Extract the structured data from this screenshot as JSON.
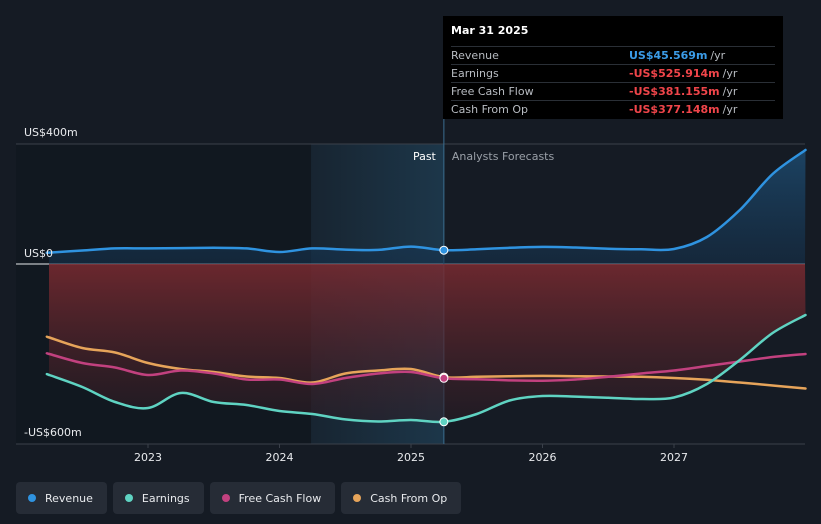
{
  "tooltip": {
    "date": "Mar 31 2025",
    "rows": [
      {
        "label": "Revenue",
        "value": "US$45.569m",
        "unit": "/yr",
        "color": "#3b9ce8"
      },
      {
        "label": "Earnings",
        "value": "-US$525.914m",
        "unit": "/yr",
        "color": "#f0454a"
      },
      {
        "label": "Free Cash Flow",
        "value": "-US$381.155m",
        "unit": "/yr",
        "color": "#f0454a"
      },
      {
        "label": "Cash From Op",
        "value": "-US$377.148m",
        "unit": "/yr",
        "color": "#f0454a"
      }
    ]
  },
  "sections": {
    "past": "Past",
    "forecast": "Analysts Forecasts"
  },
  "legend": [
    {
      "label": "Revenue",
      "color": "#2f93e0"
    },
    {
      "label": "Earnings",
      "color": "#5fd3c2"
    },
    {
      "label": "Free Cash Flow",
      "color": "#c2417f"
    },
    {
      "label": "Cash From Op",
      "color": "#e6a45a"
    }
  ],
  "chart_data": {
    "type": "line",
    "ylim": [
      -600,
      400
    ],
    "y_ticks": [
      {
        "value": 400,
        "label": "US$400m"
      },
      {
        "value": 0,
        "label": "US$0"
      },
      {
        "value": -600,
        "label": "-US$600m"
      }
    ],
    "x_ticks": [
      {
        "value": 2023,
        "label": "2023"
      },
      {
        "value": 2024,
        "label": "2024"
      },
      {
        "value": 2025,
        "label": "2025"
      },
      {
        "value": 2026,
        "label": "2026"
      },
      {
        "value": 2027,
        "label": "2027"
      }
    ],
    "xlim": [
      2021.9,
      2028.0
    ],
    "past_start": 2024.24,
    "present": 2025.25,
    "series": [
      {
        "name": "Revenue",
        "color": "#2f93e0",
        "points": [
          [
            2022.25,
            38
          ],
          [
            2022.5,
            45
          ],
          [
            2022.75,
            52
          ],
          [
            2023.0,
            52
          ],
          [
            2023.25,
            53
          ],
          [
            2023.5,
            54
          ],
          [
            2023.75,
            52
          ],
          [
            2024.0,
            40
          ],
          [
            2024.25,
            52
          ],
          [
            2024.5,
            48
          ],
          [
            2024.75,
            47
          ],
          [
            2025.0,
            58
          ],
          [
            2025.25,
            46
          ],
          [
            2025.5,
            49
          ],
          [
            2025.75,
            54
          ],
          [
            2026.0,
            57
          ],
          [
            2026.25,
            55
          ],
          [
            2026.5,
            51
          ],
          [
            2026.75,
            49
          ],
          [
            2027.0,
            50
          ],
          [
            2027.25,
            90
          ],
          [
            2027.5,
            180
          ],
          [
            2027.75,
            300
          ],
          [
            2028.0,
            380
          ]
        ]
      },
      {
        "name": "Earnings",
        "color": "#5fd3c2",
        "points": [
          [
            2022.25,
            -370
          ],
          [
            2022.5,
            -410
          ],
          [
            2022.75,
            -460
          ],
          [
            2023.0,
            -480
          ],
          [
            2023.25,
            -430
          ],
          [
            2023.5,
            -460
          ],
          [
            2023.75,
            -470
          ],
          [
            2024.0,
            -490
          ],
          [
            2024.25,
            -500
          ],
          [
            2024.5,
            -518
          ],
          [
            2024.75,
            -525
          ],
          [
            2025.0,
            -520
          ],
          [
            2025.25,
            -526
          ],
          [
            2025.5,
            -500
          ],
          [
            2025.75,
            -455
          ],
          [
            2026.0,
            -440
          ],
          [
            2026.25,
            -442
          ],
          [
            2026.5,
            -446
          ],
          [
            2026.75,
            -450
          ],
          [
            2027.0,
            -445
          ],
          [
            2027.25,
            -400
          ],
          [
            2027.5,
            -320
          ],
          [
            2027.75,
            -230
          ],
          [
            2028.0,
            -170
          ]
        ]
      },
      {
        "name": "Free Cash Flow",
        "color": "#c2417f",
        "points": [
          [
            2022.25,
            -300
          ],
          [
            2022.5,
            -330
          ],
          [
            2022.75,
            -345
          ],
          [
            2023.0,
            -370
          ],
          [
            2023.25,
            -355
          ],
          [
            2023.5,
            -365
          ],
          [
            2023.75,
            -385
          ],
          [
            2024.0,
            -385
          ],
          [
            2024.25,
            -400
          ],
          [
            2024.5,
            -380
          ],
          [
            2024.75,
            -365
          ],
          [
            2025.0,
            -360
          ],
          [
            2025.25,
            -381
          ],
          [
            2025.5,
            -384
          ],
          [
            2025.75,
            -388
          ],
          [
            2026.0,
            -389
          ],
          [
            2026.25,
            -385
          ],
          [
            2026.5,
            -376
          ],
          [
            2026.75,
            -365
          ],
          [
            2027.0,
            -355
          ],
          [
            2027.25,
            -340
          ],
          [
            2027.5,
            -325
          ],
          [
            2027.75,
            -310
          ],
          [
            2028.0,
            -300
          ]
        ]
      },
      {
        "name": "Cash From Op",
        "color": "#e6a45a",
        "points": [
          [
            2022.25,
            -245
          ],
          [
            2022.5,
            -280
          ],
          [
            2022.75,
            -295
          ],
          [
            2023.0,
            -330
          ],
          [
            2023.25,
            -350
          ],
          [
            2023.5,
            -360
          ],
          [
            2023.75,
            -375
          ],
          [
            2024.0,
            -380
          ],
          [
            2024.25,
            -395
          ],
          [
            2024.5,
            -365
          ],
          [
            2024.75,
            -355
          ],
          [
            2025.0,
            -350
          ],
          [
            2025.25,
            -377
          ],
          [
            2025.5,
            -376
          ],
          [
            2025.75,
            -374
          ],
          [
            2026.0,
            -373
          ],
          [
            2026.25,
            -374
          ],
          [
            2026.5,
            -375
          ],
          [
            2026.75,
            -376
          ],
          [
            2027.0,
            -380
          ],
          [
            2027.25,
            -386
          ],
          [
            2027.5,
            -395
          ],
          [
            2027.75,
            -405
          ],
          [
            2028.0,
            -415
          ]
        ]
      }
    ]
  }
}
